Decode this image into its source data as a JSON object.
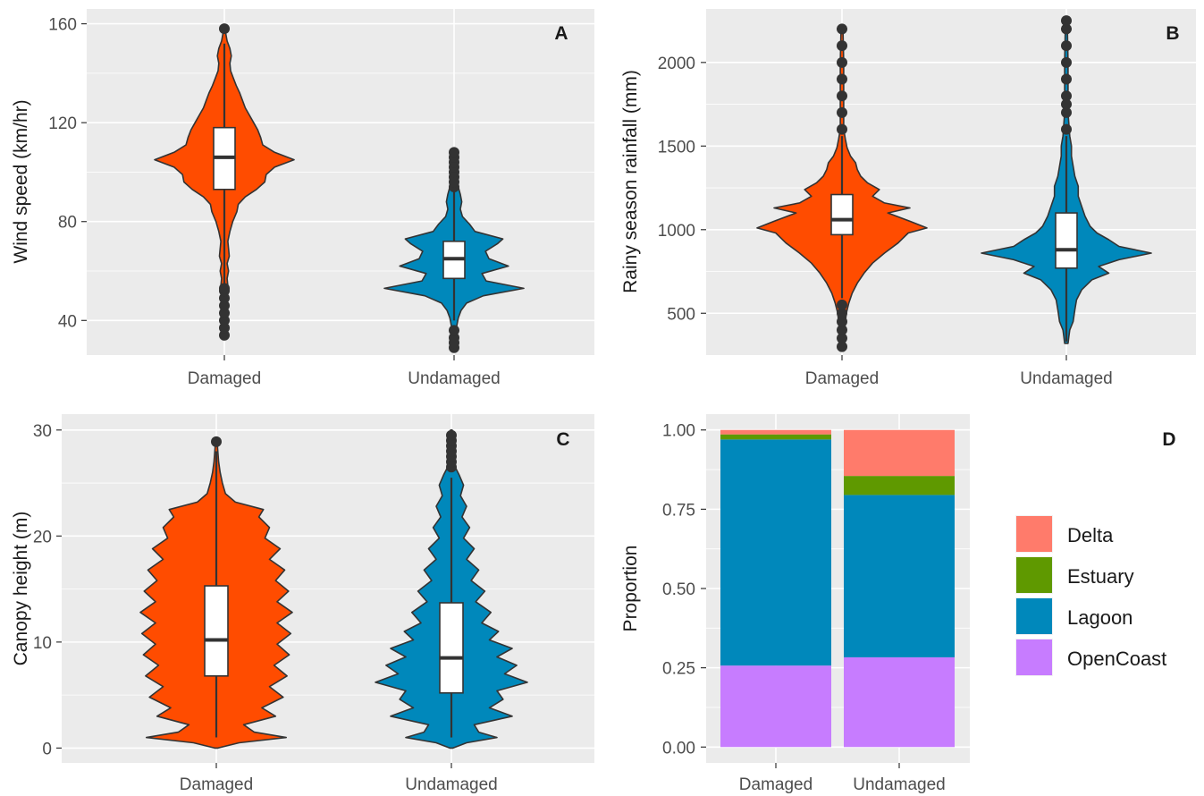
{
  "chart_data": [
    {
      "panel": "A",
      "type": "violin",
      "categories": [
        "Damaged",
        "Undamaged"
      ],
      "ylabel": "Wind speed (km/hr)",
      "ylim": [
        26,
        166
      ],
      "yticks": [
        40,
        80,
        120,
        160
      ],
      "grid": true,
      "series": [
        {
          "category": "Damaged",
          "color": "#FF4C00",
          "box": {
            "q1": 93,
            "median": 106,
            "q3": 118,
            "whisker_low": 54,
            "whisker_high": 152
          },
          "range": [
            34,
            158
          ],
          "outliers": [
            34,
            37,
            40,
            43,
            46,
            49,
            52,
            53,
            158
          ],
          "density": [
            [
              34,
              0.02
            ],
            [
              38,
              0.02
            ],
            [
              42,
              0.02
            ],
            [
              46,
              0.03
            ],
            [
              50,
              0.04
            ],
            [
              54,
              0.05
            ],
            [
              57,
              0.04
            ],
            [
              60,
              0.06
            ],
            [
              63,
              0.04
            ],
            [
              66,
              0.07
            ],
            [
              69,
              0.06
            ],
            [
              72,
              0.05
            ],
            [
              76,
              0.08
            ],
            [
              80,
              0.12
            ],
            [
              84,
              0.18
            ],
            [
              87,
              0.2
            ],
            [
              90,
              0.3
            ],
            [
              93,
              0.46
            ],
            [
              96,
              0.58
            ],
            [
              99,
              0.6
            ],
            [
              102,
              0.72
            ],
            [
              105,
              1.0
            ],
            [
              108,
              0.72
            ],
            [
              111,
              0.55
            ],
            [
              114,
              0.52
            ],
            [
              117,
              0.48
            ],
            [
              120,
              0.42
            ],
            [
              123,
              0.36
            ],
            [
              126,
              0.3
            ],
            [
              129,
              0.26
            ],
            [
              132,
              0.22
            ],
            [
              135,
              0.17
            ],
            [
              138,
              0.13
            ],
            [
              141,
              0.09
            ],
            [
              144,
              0.08
            ],
            [
              147,
              0.1
            ],
            [
              150,
              0.08
            ],
            [
              153,
              0.04
            ],
            [
              156,
              0.02
            ],
            [
              158,
              0.01
            ]
          ]
        },
        {
          "category": "Undamaged",
          "color": "#0088BB",
          "box": {
            "q1": 57,
            "median": 65,
            "q3": 72,
            "whisker_low": 40,
            "whisker_high": 93
          },
          "range": [
            29,
            108
          ],
          "outliers": [
            29,
            31,
            33,
            36,
            94,
            96,
            98,
            100,
            102,
            104,
            106,
            108
          ],
          "density": [
            [
              29,
              0.02
            ],
            [
              32,
              0.02
            ],
            [
              35,
              0.02
            ],
            [
              38,
              0.04
            ],
            [
              41,
              0.06
            ],
            [
              44,
              0.1
            ],
            [
              47,
              0.18
            ],
            [
              50,
              0.42
            ],
            [
              53,
              1.0
            ],
            [
              56,
              0.46
            ],
            [
              59,
              0.4
            ],
            [
              62,
              0.78
            ],
            [
              65,
              0.5
            ],
            [
              68,
              0.45
            ],
            [
              71,
              0.62
            ],
            [
              73,
              0.7
            ],
            [
              76,
              0.3
            ],
            [
              79,
              0.22
            ],
            [
              82,
              0.12
            ],
            [
              85,
              0.09
            ],
            [
              88,
              0.11
            ],
            [
              91,
              0.09
            ],
            [
              94,
              0.06
            ],
            [
              97,
              0.04
            ],
            [
              100,
              0.03
            ],
            [
              103,
              0.02
            ],
            [
              106,
              0.02
            ],
            [
              108,
              0.01
            ]
          ]
        }
      ]
    },
    {
      "panel": "B",
      "type": "violin",
      "categories": [
        "Damaged",
        "Undamaged"
      ],
      "ylabel": "Rainy season rainfall (mm)",
      "ylim": [
        250,
        2320
      ],
      "yticks": [
        500,
        1000,
        1500,
        2000
      ],
      "grid": true,
      "series": [
        {
          "category": "Damaged",
          "color": "#FF4C00",
          "box": {
            "q1": 970,
            "median": 1060,
            "q3": 1210,
            "whisker_low": 590,
            "whisker_high": 1560
          },
          "range": [
            300,
            2220
          ],
          "outliers": [
            300,
            350,
            400,
            450,
            500,
            550,
            1600,
            1700,
            1800,
            1900,
            2000,
            2100,
            2200
          ],
          "density": [
            [
              300,
              0.02
            ],
            [
              400,
              0.03
            ],
            [
              500,
              0.05
            ],
            [
              560,
              0.08
            ],
            [
              620,
              0.12
            ],
            [
              680,
              0.18
            ],
            [
              740,
              0.26
            ],
            [
              800,
              0.36
            ],
            [
              860,
              0.5
            ],
            [
              920,
              0.66
            ],
            [
              980,
              0.78
            ],
            [
              1010,
              1.0
            ],
            [
              1050,
              0.8
            ],
            [
              1100,
              0.54
            ],
            [
              1130,
              0.8
            ],
            [
              1160,
              0.5
            ],
            [
              1200,
              0.36
            ],
            [
              1240,
              0.44
            ],
            [
              1280,
              0.3
            ],
            [
              1320,
              0.22
            ],
            [
              1360,
              0.18
            ],
            [
              1400,
              0.16
            ],
            [
              1440,
              0.1
            ],
            [
              1490,
              0.06
            ],
            [
              1540,
              0.04
            ],
            [
              1600,
              0.02
            ],
            [
              1800,
              0.02
            ],
            [
              2000,
              0.02
            ],
            [
              2220,
              0.01
            ]
          ]
        },
        {
          "category": "Undamaged",
          "color": "#0088BB",
          "box": {
            "q1": 770,
            "median": 880,
            "q3": 1100,
            "whisker_low": 330,
            "whisker_high": 1560
          },
          "range": [
            320,
            2250
          ],
          "outliers": [
            1600,
            1700,
            1750,
            1800,
            1900,
            2000,
            2100,
            2200,
            2250
          ],
          "density": [
            [
              320,
              0.02
            ],
            [
              360,
              0.03
            ],
            [
              400,
              0.04
            ],
            [
              450,
              0.08
            ],
            [
              520,
              0.1
            ],
            [
              580,
              0.12
            ],
            [
              640,
              0.18
            ],
            [
              700,
              0.3
            ],
            [
              740,
              0.5
            ],
            [
              780,
              0.38
            ],
            [
              820,
              0.62
            ],
            [
              860,
              1.0
            ],
            [
              900,
              0.62
            ],
            [
              940,
              0.5
            ],
            [
              980,
              0.36
            ],
            [
              1020,
              0.28
            ],
            [
              1080,
              0.22
            ],
            [
              1140,
              0.18
            ],
            [
              1200,
              0.14
            ],
            [
              1260,
              0.14
            ],
            [
              1320,
              0.1
            ],
            [
              1380,
              0.08
            ],
            [
              1440,
              0.06
            ],
            [
              1500,
              0.06
            ],
            [
              1560,
              0.04
            ],
            [
              1700,
              0.02
            ],
            [
              2000,
              0.02
            ],
            [
              2250,
              0.01
            ]
          ]
        }
      ]
    },
    {
      "panel": "C",
      "type": "violin",
      "categories": [
        "Damaged",
        "Undamaged"
      ],
      "ylabel": "Canopy height (m)",
      "ylim": [
        -1.4,
        31.5
      ],
      "yticks": [
        0,
        10,
        20,
        30
      ],
      "grid": true,
      "series": [
        {
          "category": "Damaged",
          "color": "#FF4C00",
          "box": {
            "q1": 6.8,
            "median": 10.2,
            "q3": 15.3,
            "whisker_low": 1,
            "whisker_high": 28
          },
          "range": [
            0,
            29
          ],
          "outliers": [
            28.9
          ],
          "density": [
            [
              0,
              0.02
            ],
            [
              0.5,
              0.3
            ],
            [
              1,
              0.92
            ],
            [
              1.5,
              0.5
            ],
            [
              2.2,
              0.36
            ],
            [
              3,
              0.78
            ],
            [
              3.8,
              0.6
            ],
            [
              4.8,
              0.88
            ],
            [
              5.8,
              0.7
            ],
            [
              6.8,
              0.93
            ],
            [
              7.8,
              0.76
            ],
            [
              8.8,
              0.96
            ],
            [
              9.8,
              0.8
            ],
            [
              10.8,
              0.98
            ],
            [
              11.8,
              0.8
            ],
            [
              12.8,
              1.0
            ],
            [
              13.8,
              0.8
            ],
            [
              14.8,
              0.95
            ],
            [
              15.8,
              0.78
            ],
            [
              16.8,
              0.9
            ],
            [
              17.8,
              0.7
            ],
            [
              18.8,
              0.84
            ],
            [
              19.8,
              0.64
            ],
            [
              20.8,
              0.7
            ],
            [
              21.8,
              0.56
            ],
            [
              22.5,
              0.62
            ],
            [
              23.2,
              0.25
            ],
            [
              24,
              0.12
            ],
            [
              25,
              0.08
            ],
            [
              26,
              0.05
            ],
            [
              27,
              0.03
            ],
            [
              28,
              0.02
            ],
            [
              29,
              0.01
            ]
          ]
        },
        {
          "category": "Undamaged",
          "color": "#0088BB",
          "box": {
            "q1": 5.2,
            "median": 8.5,
            "q3": 13.7,
            "whisker_low": 1,
            "whisker_high": 25.5
          },
          "range": [
            0,
            30
          ],
          "outliers": [
            26.5,
            27,
            27.5,
            28,
            28.5,
            29,
            29.5
          ],
          "density": [
            [
              0,
              0.02
            ],
            [
              0.5,
              0.2
            ],
            [
              1,
              0.6
            ],
            [
              1.5,
              0.36
            ],
            [
              2.2,
              0.3
            ],
            [
              3,
              0.8
            ],
            [
              3.8,
              0.5
            ],
            [
              4.6,
              0.68
            ],
            [
              5.4,
              0.6
            ],
            [
              6.2,
              1.0
            ],
            [
              7,
              0.7
            ],
            [
              7.8,
              0.86
            ],
            [
              8.6,
              0.6
            ],
            [
              9.4,
              0.8
            ],
            [
              10.2,
              0.5
            ],
            [
              11,
              0.62
            ],
            [
              11.8,
              0.4
            ],
            [
              12.8,
              0.52
            ],
            [
              13.8,
              0.32
            ],
            [
              14.8,
              0.44
            ],
            [
              15.8,
              0.26
            ],
            [
              16.8,
              0.36
            ],
            [
              17.8,
              0.2
            ],
            [
              18.8,
              0.3
            ],
            [
              19.8,
              0.16
            ],
            [
              20.8,
              0.24
            ],
            [
              21.8,
              0.14
            ],
            [
              22.8,
              0.2
            ],
            [
              23.8,
              0.12
            ],
            [
              24.8,
              0.16
            ],
            [
              25.8,
              0.1
            ],
            [
              26.5,
              0.05
            ],
            [
              27.5,
              0.02
            ],
            [
              28.5,
              0.01
            ],
            [
              30,
              0.01
            ]
          ]
        }
      ]
    },
    {
      "panel": "D",
      "type": "bar",
      "stacked": true,
      "categories": [
        "Damaged",
        "Undamaged"
      ],
      "ylabel": "Proportion",
      "ylim": [
        -0.05,
        1.05
      ],
      "yticks": [
        "0.00",
        "0.25",
        "0.50",
        "0.75",
        "1.00"
      ],
      "grid": true,
      "legend_position": "right",
      "series": [
        {
          "name": "OpenCoast",
          "color": "#C77CFF",
          "values": [
            0.257,
            0.283
          ]
        },
        {
          "name": "Lagoon",
          "color": "#0088BB",
          "values": [
            0.713,
            0.512
          ]
        },
        {
          "name": "Estuary",
          "color": "#5F9900",
          "values": [
            0.016,
            0.06
          ]
        },
        {
          "name": "Delta",
          "color": "#FF7B6B",
          "values": [
            0.014,
            0.145
          ]
        }
      ],
      "legend_order": [
        "Delta",
        "Estuary",
        "Lagoon",
        "OpenCoast"
      ]
    }
  ]
}
